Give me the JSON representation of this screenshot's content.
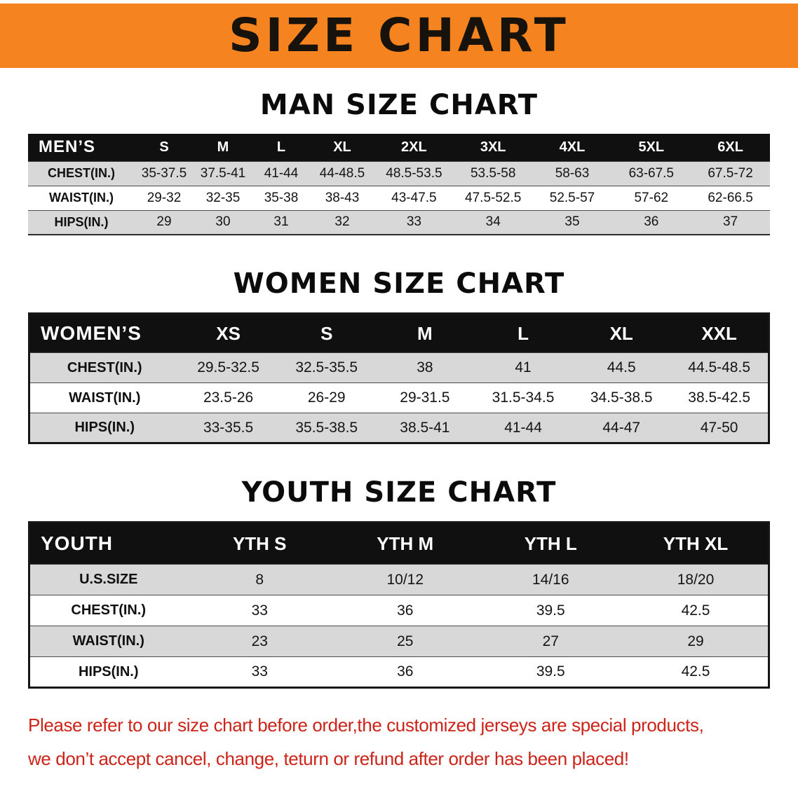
{
  "banner": {
    "title": "SIZE CHART"
  },
  "chart_data": [
    {
      "type": "table",
      "heading": "MAN SIZE CHART",
      "header": [
        "MEN’S",
        "S",
        "M",
        "L",
        "XL",
        "2XL",
        "3XL",
        "4XL",
        "5XL",
        "6XL"
      ],
      "rows": [
        [
          "CHEST(IN.)",
          "35-37.5",
          "37.5-41",
          "41-44",
          "44-48.5",
          "48.5-53.5",
          "53.5-58",
          "58-63",
          "63-67.5",
          "67.5-72"
        ],
        [
          "WAIST(IN.)",
          "29-32",
          "32-35",
          "35-38",
          "38-43",
          "43-47.5",
          "47.5-52.5",
          "52.5-57",
          "57-62",
          "62-66.5"
        ],
        [
          "HIPS(IN.)",
          "29",
          "30",
          "31",
          "32",
          "33",
          "34",
          "35",
          "36",
          "37"
        ]
      ]
    },
    {
      "type": "table",
      "heading": "WOMEN SIZE CHART",
      "header": [
        "WOMEN’S",
        "XS",
        "S",
        "M",
        "L",
        "XL",
        "XXL"
      ],
      "rows": [
        [
          "CHEST(IN.)",
          "29.5-32.5",
          "32.5-35.5",
          "38",
          "41",
          "44.5",
          "44.5-48.5"
        ],
        [
          "WAIST(IN.)",
          "23.5-26",
          "26-29",
          "29-31.5",
          "31.5-34.5",
          "34.5-38.5",
          "38.5-42.5"
        ],
        [
          "HIPS(IN.)",
          "33-35.5",
          "35.5-38.5",
          "38.5-41",
          "41-44",
          "44-47",
          "47-50"
        ]
      ]
    },
    {
      "type": "table",
      "heading": "YOUTH SIZE CHART",
      "header": [
        "YOUTH",
        "YTH S",
        "YTH M",
        "YTH L",
        "YTH XL"
      ],
      "rows": [
        [
          "U.S.SIZE",
          "8",
          "10/12",
          "14/16",
          "18/20"
        ],
        [
          "CHEST(IN.)",
          "33",
          "36",
          "39.5",
          "42.5"
        ],
        [
          "WAIST(IN.)",
          "23",
          "25",
          "27",
          "29"
        ],
        [
          "HIPS(IN.)",
          "33",
          "36",
          "39.5",
          "42.5"
        ]
      ]
    }
  ],
  "disclaimer": {
    "line1": "Please refer to our size chart before order,the customized jerseys are special products,",
    "line2": "we don’t accept cancel, change, teturn or refund after order has been placed!"
  },
  "colors": {
    "banner_bg": "#f5831f",
    "table_header_bg": "#101010",
    "row_stripe": "#d8d8d8",
    "disclaimer_red": "#cd2318"
  }
}
